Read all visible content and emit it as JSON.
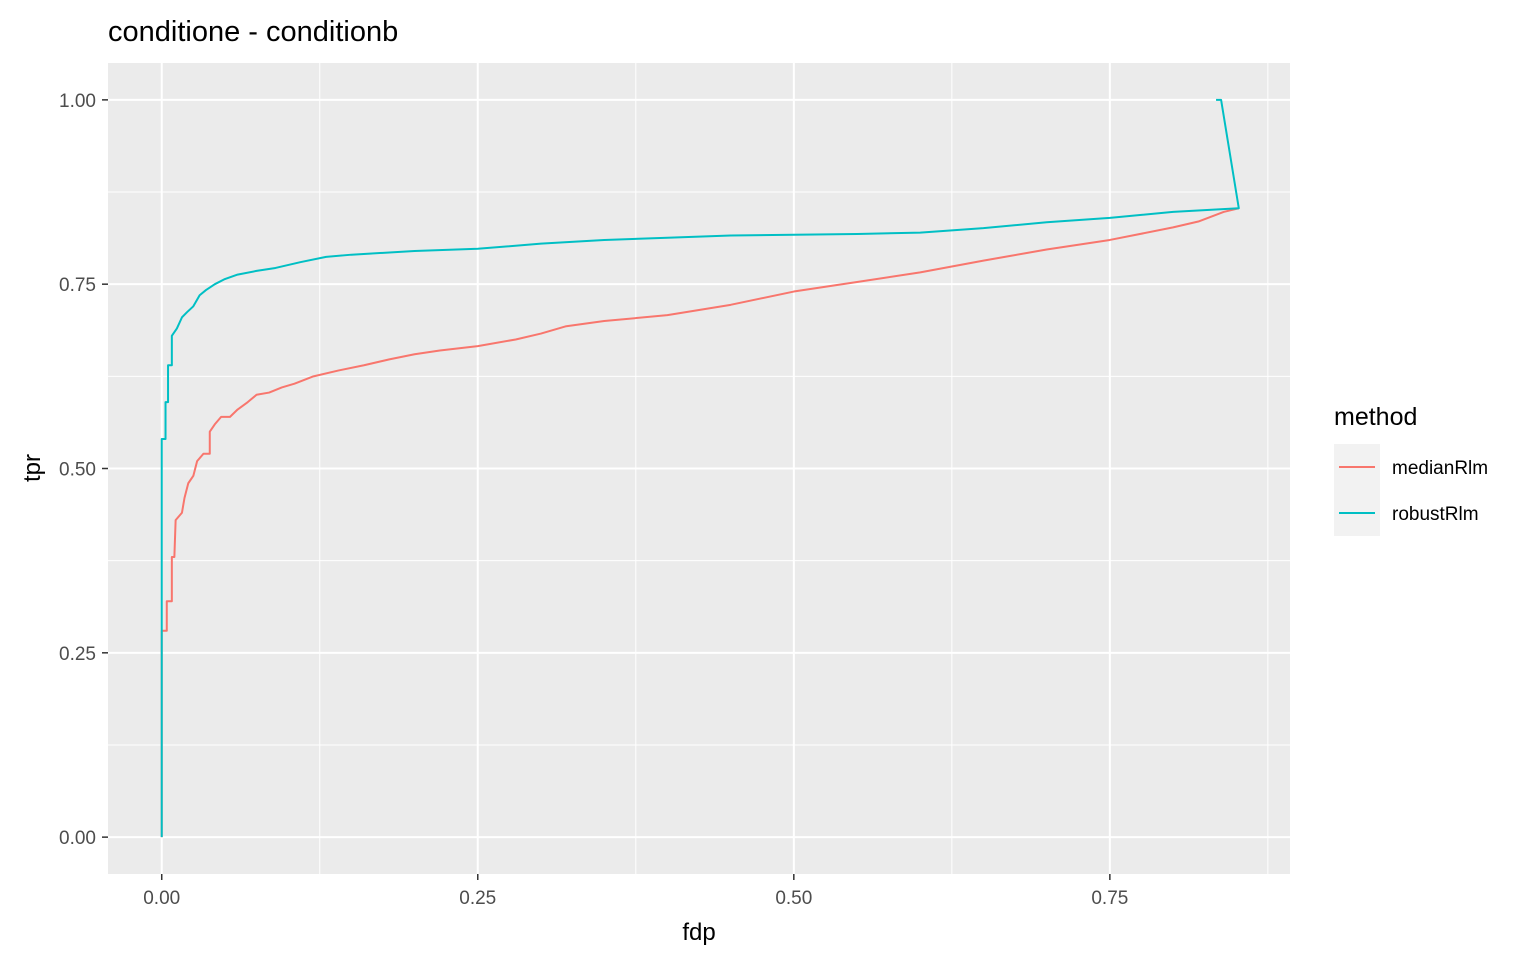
{
  "chart_data": {
    "type": "line",
    "title": "conditione - conditionb",
    "xlabel": "fdp",
    "ylabel": "tpr",
    "xlim": [
      -0.0425,
      0.8925
    ],
    "ylim": [
      -0.05,
      1.05
    ],
    "x_ticks": [
      0.0,
      0.25,
      0.5,
      0.75
    ],
    "x_tick_labels": [
      "0.00",
      "0.25",
      "0.50",
      "0.75"
    ],
    "y_ticks": [
      0.0,
      0.25,
      0.5,
      0.75,
      1.0
    ],
    "y_tick_labels": [
      "0.00",
      "0.25",
      "0.50",
      "0.75",
      "1.00"
    ],
    "grid": true,
    "legend": {
      "title": "method",
      "position": "right"
    },
    "series": [
      {
        "name": "medianRlm",
        "color": "#F8766D",
        "points": [
          [
            0.0,
            0.0
          ],
          [
            0.0,
            0.28
          ],
          [
            0.004,
            0.28
          ],
          [
            0.004,
            0.32
          ],
          [
            0.008,
            0.32
          ],
          [
            0.008,
            0.38
          ],
          [
            0.01,
            0.38
          ],
          [
            0.011,
            0.43
          ],
          [
            0.016,
            0.44
          ],
          [
            0.018,
            0.46
          ],
          [
            0.021,
            0.48
          ],
          [
            0.025,
            0.49
          ],
          [
            0.028,
            0.51
          ],
          [
            0.033,
            0.52
          ],
          [
            0.038,
            0.52
          ],
          [
            0.038,
            0.55
          ],
          [
            0.042,
            0.56
          ],
          [
            0.047,
            0.57
          ],
          [
            0.054,
            0.57
          ],
          [
            0.06,
            0.58
          ],
          [
            0.068,
            0.59
          ],
          [
            0.075,
            0.6
          ],
          [
            0.085,
            0.603
          ],
          [
            0.095,
            0.61
          ],
          [
            0.105,
            0.615
          ],
          [
            0.12,
            0.625
          ],
          [
            0.14,
            0.633
          ],
          [
            0.16,
            0.64
          ],
          [
            0.18,
            0.648
          ],
          [
            0.2,
            0.655
          ],
          [
            0.22,
            0.66
          ],
          [
            0.25,
            0.666
          ],
          [
            0.28,
            0.675
          ],
          [
            0.3,
            0.683
          ],
          [
            0.32,
            0.693
          ],
          [
            0.35,
            0.7
          ],
          [
            0.4,
            0.708
          ],
          [
            0.45,
            0.722
          ],
          [
            0.5,
            0.74
          ],
          [
            0.55,
            0.753
          ],
          [
            0.6,
            0.766
          ],
          [
            0.65,
            0.782
          ],
          [
            0.7,
            0.797
          ],
          [
            0.75,
            0.81
          ],
          [
            0.8,
            0.827
          ],
          [
            0.82,
            0.835
          ],
          [
            0.84,
            0.848
          ],
          [
            0.852,
            0.853
          ]
        ]
      },
      {
        "name": "robustRlm",
        "color": "#00BFC4",
        "points": [
          [
            0.0,
            0.0
          ],
          [
            0.0,
            0.54
          ],
          [
            0.003,
            0.54
          ],
          [
            0.003,
            0.59
          ],
          [
            0.005,
            0.59
          ],
          [
            0.005,
            0.64
          ],
          [
            0.008,
            0.64
          ],
          [
            0.008,
            0.68
          ],
          [
            0.012,
            0.69
          ],
          [
            0.016,
            0.705
          ],
          [
            0.02,
            0.712
          ],
          [
            0.025,
            0.72
          ],
          [
            0.03,
            0.735
          ],
          [
            0.035,
            0.742
          ],
          [
            0.042,
            0.75
          ],
          [
            0.05,
            0.757
          ],
          [
            0.06,
            0.763
          ],
          [
            0.075,
            0.768
          ],
          [
            0.09,
            0.772
          ],
          [
            0.11,
            0.78
          ],
          [
            0.13,
            0.787
          ],
          [
            0.15,
            0.79
          ],
          [
            0.2,
            0.795
          ],
          [
            0.25,
            0.798
          ],
          [
            0.3,
            0.805
          ],
          [
            0.35,
            0.81
          ],
          [
            0.4,
            0.813
          ],
          [
            0.45,
            0.816
          ],
          [
            0.5,
            0.817
          ],
          [
            0.55,
            0.818
          ],
          [
            0.6,
            0.82
          ],
          [
            0.65,
            0.826
          ],
          [
            0.7,
            0.834
          ],
          [
            0.75,
            0.84
          ],
          [
            0.8,
            0.848
          ],
          [
            0.852,
            0.853
          ],
          [
            0.838,
            1.0
          ],
          [
            0.834,
            1.0
          ]
        ]
      }
    ]
  }
}
